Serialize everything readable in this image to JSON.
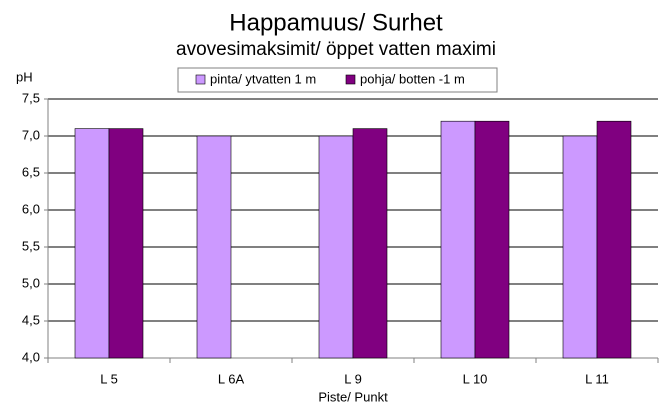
{
  "chart_data": {
    "type": "bar",
    "title": "Happamuus/ Surhet",
    "subtitle": "avovesimaksimit/ öppet vatten maximi",
    "y_label": "pH",
    "x_label": "Piste/ Punkt",
    "categories": [
      "L 5",
      "L 6A",
      "L 9",
      "L 10",
      "L 11"
    ],
    "series": [
      {
        "name": "pinta/ ytvatten 1 m",
        "color": "#cc99ff",
        "values": [
          7.1,
          7.0,
          7.0,
          7.2,
          7.0
        ]
      },
      {
        "name": "pohja/ botten -1 m",
        "color": "#800080",
        "values": [
          7.1,
          null,
          7.1,
          7.2,
          7.2
        ]
      }
    ],
    "ylim": [
      4,
      7.5
    ],
    "yticks": [
      {
        "value": 4,
        "label": "4,0"
      },
      {
        "value": 4.5,
        "label": "4,5"
      },
      {
        "value": 5,
        "label": "5,0"
      },
      {
        "value": 5.5,
        "label": "5,5"
      },
      {
        "value": 6,
        "label": "6,0"
      },
      {
        "value": 6.5,
        "label": "6,5"
      },
      {
        "value": 7,
        "label": "7,0"
      },
      {
        "value": 7.5,
        "label": "7,5"
      }
    ],
    "grid": true,
    "legend": "top"
  }
}
